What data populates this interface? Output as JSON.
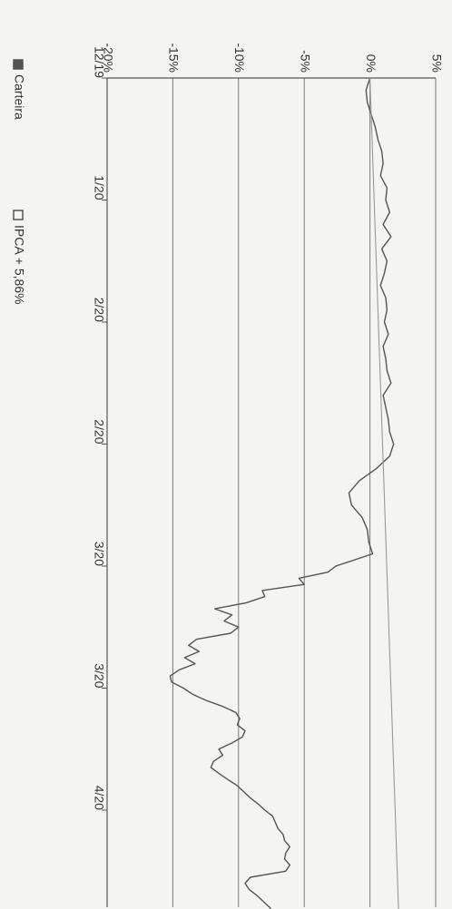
{
  "chart_data": {
    "type": "line",
    "orientation": "rotated-90-clockwise",
    "title": "",
    "xlabel": "",
    "ylabel": "",
    "x_ticks": [
      "12/19",
      "1/20",
      "2/20",
      "2/20",
      "3/20",
      "3/20",
      "4/20"
    ],
    "y_ticks": [
      "-20%",
      "-15%",
      "-10%",
      "-5%",
      "0%",
      "5%"
    ],
    "ylim": [
      -20,
      5
    ],
    "grid": true,
    "legend_position": "left",
    "legend": [
      {
        "name": "Carteira",
        "color": "#555555",
        "swatch": "filled"
      },
      {
        "name": "IPCA + 5,86%",
        "color": "#555555",
        "swatch": "outlined"
      }
    ],
    "series": [
      {
        "name": "Carteira",
        "color": "#555555",
        "x": [
          0,
          0.1,
          0.2,
          0.3,
          0.4,
          0.5,
          0.6,
          0.7,
          0.8,
          0.9,
          1.0,
          1.1,
          1.2,
          1.3,
          1.4,
          1.5,
          1.6,
          1.7,
          1.8,
          1.9,
          2.0,
          2.1,
          2.2,
          2.3,
          2.4,
          2.5,
          2.6,
          2.7,
          2.8,
          2.9,
          3.0,
          3.1,
          3.2,
          3.3,
          3.4,
          3.5,
          3.6,
          3.7,
          3.8,
          3.9,
          4.0,
          4.05,
          4.1,
          4.15,
          4.2,
          4.25,
          4.3,
          4.35,
          4.4,
          4.45,
          4.5,
          4.55,
          4.6,
          4.65,
          4.7,
          4.75,
          4.8,
          4.85,
          4.9,
          4.95,
          5.0,
          5.05,
          5.1,
          5.15,
          5.2,
          5.25,
          5.3,
          5.35,
          5.4,
          5.45,
          5.5,
          5.55,
          5.6,
          5.65,
          5.7,
          5.75,
          5.8,
          5.85,
          5.9,
          5.95,
          6.0,
          6.05,
          6.1,
          6.15,
          6.2,
          6.25,
          6.3,
          6.35,
          6.4,
          6.45,
          6.5,
          6.55,
          6.6,
          6.65,
          6.7,
          6.75,
          6.8,
          6.85,
          6.9
        ],
        "values": [
          0.0,
          -0.3,
          -0.2,
          0.1,
          0.4,
          0.6,
          0.9,
          1.0,
          0.8,
          1.3,
          1.2,
          1.5,
          1.0,
          1.6,
          0.9,
          1.3,
          1.1,
          0.8,
          1.2,
          1.3,
          1.1,
          1.4,
          1.0,
          1.2,
          1.3,
          1.6,
          1.0,
          1.2,
          1.4,
          1.5,
          1.8,
          1.5,
          0.5,
          -0.8,
          -1.6,
          -1.4,
          -0.6,
          -0.2,
          -0.1,
          0.2,
          -2.6,
          -3.2,
          -5.4,
          -5.0,
          -8.2,
          -8.0,
          -9.4,
          -11.8,
          -10.5,
          -11.1,
          -10.0,
          -10.6,
          -13.2,
          -13.8,
          -13.0,
          -14.1,
          -13.3,
          -14.5,
          -15.2,
          -15.1,
          -14.2,
          -13.5,
          -12.5,
          -11.2,
          -10.2,
          -9.9,
          -10.1,
          -9.5,
          -9.7,
          -10.5,
          -11.5,
          -11.2,
          -11.9,
          -12.1,
          -11.5,
          -10.8,
          -10.1,
          -9.6,
          -9.1,
          -8.5,
          -8.0,
          -7.4,
          -7.2,
          -7.0,
          -6.6,
          -6.5,
          -6.1,
          -6.4,
          -6.5,
          -6.1,
          -6.4,
          -9.1,
          -9.5,
          -9.2,
          -8.6,
          -8.1,
          -7.6,
          -7.4,
          -7.3
        ]
      },
      {
        "name": "IPCA + 5,86%",
        "color": "#999999",
        "x": [
          0,
          6.9
        ],
        "values": [
          0.0,
          2.2
        ]
      }
    ]
  }
}
